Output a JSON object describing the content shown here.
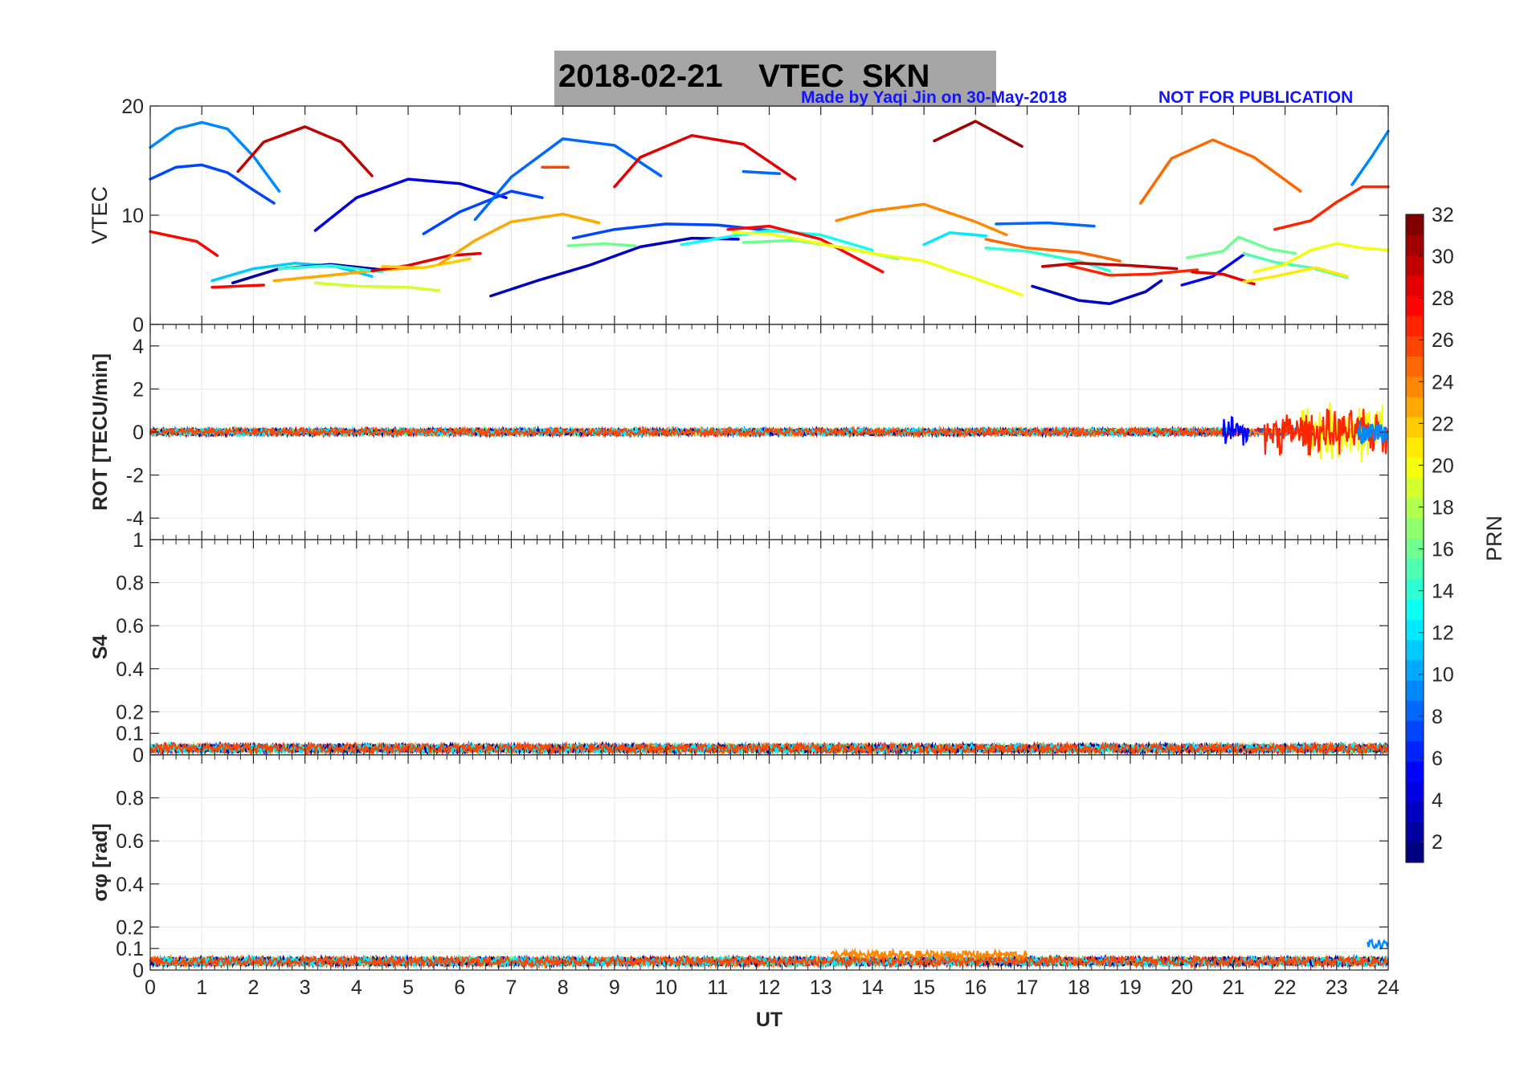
{
  "header": {
    "title": "2018-02-21    VTEC  SKN",
    "credit": "Made by Yaqi Jin on 30-May-2018",
    "notice": "NOT FOR PUBLICATION"
  },
  "chart_data": [
    {
      "type": "line",
      "panel": "vtec",
      "ylabel": "VTEC",
      "xlim": [
        0,
        24
      ],
      "ylim": [
        0,
        20
      ],
      "yticks": [
        0,
        10,
        20
      ],
      "grid": true,
      "series": [
        {
          "prn": 9,
          "x": [
            0,
            0.5,
            1,
            1.5,
            2,
            2.5
          ],
          "y": [
            16.2,
            17.9,
            18.5,
            17.9,
            15.4,
            12.2
          ]
        },
        {
          "prn": 7,
          "x": [
            0,
            0.5,
            1,
            1.5,
            2,
            2.4
          ],
          "y": [
            13.3,
            14.4,
            14.6,
            13.9,
            12.3,
            11.1
          ]
        },
        {
          "prn": 30,
          "x": [
            1.7,
            2.2,
            3,
            3.7,
            4.3
          ],
          "y": [
            14.0,
            16.7,
            18.1,
            16.7,
            13.6
          ]
        },
        {
          "prn": 4,
          "x": [
            3.2,
            4,
            5,
            6,
            6.9
          ],
          "y": [
            8.6,
            11.6,
            13.3,
            12.9,
            11.6
          ]
        },
        {
          "prn": 7,
          "x": [
            5.3,
            6,
            7,
            7.6
          ],
          "y": [
            8.3,
            10.3,
            12.2,
            11.6
          ]
        },
        {
          "prn": 8,
          "x": [
            6.3,
            7,
            8,
            9,
            9.9
          ],
          "y": [
            9.6,
            13.5,
            17.0,
            16.4,
            13.6
          ]
        },
        {
          "prn": 26,
          "x": [
            7.6,
            8.1
          ],
          "y": [
            14.4,
            14.4
          ]
        },
        {
          "prn": 29,
          "x": [
            9,
            9.5,
            10.5,
            11.5,
            12.5
          ],
          "y": [
            12.6,
            15.3,
            17.3,
            16.5,
            13.3
          ]
        },
        {
          "prn": 8,
          "x": [
            11.5,
            12.2
          ],
          "y": [
            14.0,
            13.8
          ]
        },
        {
          "prn": 31,
          "x": [
            15.2,
            16,
            16.9
          ],
          "y": [
            16.8,
            18.6,
            16.3
          ]
        },
        {
          "prn": 25,
          "x": [
            19.2,
            19.8,
            20.6,
            21.4,
            22.3
          ],
          "y": [
            11.1,
            15.2,
            16.9,
            15.3,
            12.2
          ]
        },
        {
          "prn": 28,
          "x": [
            0,
            0.5,
            0.9,
            1.3
          ],
          "y": [
            8.5,
            8.0,
            7.6,
            6.3
          ]
        },
        {
          "prn": 28,
          "x": [
            1.2,
            2.2
          ],
          "y": [
            3.4,
            3.6
          ]
        },
        {
          "prn": 11,
          "x": [
            1.2,
            2,
            2.8,
            3.6,
            4.3
          ],
          "y": [
            4.0,
            5.1,
            5.6,
            5.3,
            4.4
          ]
        },
        {
          "prn": 2,
          "x": [
            1.6,
            2.5,
            3.5,
            4.5
          ],
          "y": [
            3.8,
            5.1,
            5.5,
            5.0
          ]
        },
        {
          "prn": 23,
          "x": [
            2.4,
            3.5,
            4.5,
            5.2
          ],
          "y": [
            4.0,
            4.5,
            5.0,
            5.2
          ]
        },
        {
          "prn": 19,
          "x": [
            3.2,
            4,
            5,
            5.6
          ],
          "y": [
            3.8,
            3.5,
            3.4,
            3.1
          ]
        },
        {
          "prn": 14,
          "x": [
            2.5,
            3.5,
            4.5
          ],
          "y": [
            5.1,
            5.4,
            4.8
          ]
        },
        {
          "prn": 29,
          "x": [
            4.3,
            5,
            5.8,
            6.4
          ],
          "y": [
            4.9,
            5.4,
            6.3,
            6.5
          ]
        },
        {
          "prn": 22,
          "x": [
            4.5,
            5.3,
            6.2
          ],
          "y": [
            5.3,
            5.2,
            6.0
          ]
        },
        {
          "prn": 23,
          "x": [
            5.6,
            6.3,
            7,
            8,
            8.7
          ],
          "y": [
            5.5,
            7.7,
            9.4,
            10.1,
            9.3
          ]
        },
        {
          "prn": 3,
          "x": [
            6.6,
            7.5,
            8.5,
            9.5,
            10.5,
            11.4
          ],
          "y": [
            2.6,
            4.0,
            5.4,
            7.1,
            7.9,
            7.8
          ]
        },
        {
          "prn": 7,
          "x": [
            8.2,
            9,
            10,
            11,
            12
          ],
          "y": [
            7.9,
            8.7,
            9.2,
            9.1,
            8.6
          ]
        },
        {
          "prn": 16,
          "x": [
            8.1,
            8.8,
            9.4
          ],
          "y": [
            7.2,
            7.4,
            7.2
          ]
        },
        {
          "prn": 13,
          "x": [
            10.3,
            11.3,
            12,
            13,
            14
          ],
          "y": [
            7.3,
            8.1,
            8.6,
            8.2,
            6.8
          ]
        },
        {
          "prn": 28,
          "x": [
            11.2,
            12,
            13,
            14.2
          ],
          "y": [
            8.7,
            9.0,
            7.8,
            4.8
          ]
        },
        {
          "prn": 16,
          "x": [
            11.5,
            12.5,
            13.5,
            14.5
          ],
          "y": [
            7.5,
            7.7,
            7.0,
            6.0
          ]
        },
        {
          "prn": 20,
          "x": [
            11.3,
            12,
            13,
            14,
            15,
            16,
            16.9
          ],
          "y": [
            8.4,
            8.3,
            7.4,
            6.5,
            5.8,
            4.2,
            2.7
          ]
        },
        {
          "prn": 24,
          "x": [
            13.3,
            14,
            15,
            16,
            16.6
          ],
          "y": [
            9.5,
            10.4,
            11.0,
            9.4,
            8.2
          ]
        },
        {
          "prn": 12,
          "x": [
            15,
            15.5,
            16.2
          ],
          "y": [
            7.3,
            8.4,
            8.1
          ]
        },
        {
          "prn": 8,
          "x": [
            16.4,
            17.4,
            18.3
          ],
          "y": [
            9.2,
            9.3,
            9.0
          ]
        },
        {
          "prn": 25,
          "x": [
            16.2,
            17,
            18,
            18.8
          ],
          "y": [
            7.8,
            7.0,
            6.6,
            5.8
          ]
        },
        {
          "prn": 14,
          "x": [
            16.2,
            17,
            18,
            18.6
          ],
          "y": [
            7.0,
            6.7,
            5.8,
            4.9
          ]
        },
        {
          "prn": 3,
          "x": [
            17.1,
            18,
            18.6,
            19.3,
            19.6
          ],
          "y": [
            3.5,
            2.2,
            1.9,
            3.0,
            4.0
          ]
        },
        {
          "prn": 30,
          "x": [
            17.3,
            18,
            19,
            19.9
          ],
          "y": [
            5.3,
            5.6,
            5.4,
            5.1
          ]
        },
        {
          "prn": 27,
          "x": [
            17.8,
            18.6,
            19.4,
            20.3
          ],
          "y": [
            5.4,
            4.5,
            4.6,
            5.0
          ]
        },
        {
          "prn": 5,
          "x": [
            20,
            20.6,
            21.2
          ],
          "y": [
            3.6,
            4.4,
            6.4
          ]
        },
        {
          "prn": 29,
          "x": [
            20.2,
            20.8,
            21.4
          ],
          "y": [
            4.8,
            4.6,
            3.7
          ]
        },
        {
          "prn": 16,
          "x": [
            20.1,
            20.8,
            21.1,
            21.7,
            22.2
          ],
          "y": [
            6.1,
            6.7,
            8.0,
            6.9,
            6.5
          ]
        },
        {
          "prn": 15,
          "x": [
            21.2,
            21.8,
            22.5,
            23.2
          ],
          "y": [
            6.5,
            5.7,
            5.2,
            4.3
          ]
        },
        {
          "prn": 20,
          "x": [
            21.4,
            22,
            22.5,
            23,
            23.5,
            24
          ],
          "y": [
            4.8,
            5.5,
            6.8,
            7.4,
            7.0,
            6.8
          ]
        },
        {
          "prn": 21,
          "x": [
            21.2,
            21.8,
            22.6,
            23.2
          ],
          "y": [
            3.9,
            4.4,
            5.2,
            4.4
          ]
        },
        {
          "prn": 27,
          "x": [
            21.8,
            22.5,
            23,
            23.5,
            24
          ],
          "y": [
            8.7,
            9.5,
            11.2,
            12.6,
            12.6
          ]
        },
        {
          "prn": 9,
          "x": [
            23.3,
            23.7,
            24
          ],
          "y": [
            12.8,
            15.5,
            17.7
          ]
        }
      ]
    },
    {
      "type": "line",
      "panel": "rot",
      "ylabel": "ROT [TECU/min]",
      "xlim": [
        0,
        24
      ],
      "ylim": [
        -5,
        5
      ],
      "yticks": [
        -4,
        -2,
        0,
        2,
        4
      ],
      "grid": true,
      "band": {
        "x_range": [
          0,
          24
        ],
        "amplitude": 0.15,
        "quiet_until": 21.0
      },
      "disturbed": [
        {
          "prn": 5,
          "x_range": [
            20.8,
            21.3
          ],
          "amplitude": 1.0
        },
        {
          "prn": 20,
          "x_range": [
            22.3,
            23.9
          ],
          "amplitude": 1.6
        },
        {
          "prn": 27,
          "x_range": [
            21.6,
            24
          ],
          "amplitude": 1.2
        },
        {
          "prn": 9,
          "x_range": [
            23.4,
            24
          ],
          "amplitude": 0.7
        }
      ]
    },
    {
      "type": "line",
      "panel": "s4",
      "ylabel": "S4",
      "xlim": [
        0,
        24
      ],
      "ylim": [
        0,
        1
      ],
      "yticks": [
        0,
        0.1,
        0.2,
        0.4,
        0.6,
        0.8,
        1
      ],
      "grid": true,
      "band": {
        "x_range": [
          0,
          24
        ],
        "level": 0.03,
        "amplitude": 0.02
      }
    },
    {
      "type": "line",
      "panel": "sigma_phi",
      "ylabel": "σφ [rad]",
      "xlabel": "UT",
      "xlim": [
        0,
        24
      ],
      "xticks": [
        0,
        1,
        2,
        3,
        4,
        5,
        6,
        7,
        8,
        9,
        10,
        11,
        12,
        13,
        14,
        15,
        16,
        17,
        18,
        19,
        20,
        21,
        22,
        23,
        24
      ],
      "ylim": [
        0,
        1
      ],
      "yticks": [
        0,
        0.1,
        0.2,
        0.4,
        0.6,
        0.8
      ],
      "grid": true,
      "band": {
        "x_range": [
          0,
          24
        ],
        "level": 0.04,
        "amplitude": 0.02
      },
      "bumps": [
        {
          "prn": 24,
          "x_range": [
            13.2,
            17
          ],
          "level": 0.07
        },
        {
          "prn": 9,
          "x_range": [
            23.6,
            24
          ],
          "level": 0.12
        }
      ]
    }
  ],
  "colorbar": {
    "label": "PRN",
    "min": 1,
    "max": 32,
    "ticks": [
      2,
      4,
      6,
      8,
      10,
      12,
      14,
      16,
      18,
      20,
      22,
      24,
      26,
      28,
      30,
      32
    ],
    "colormap": "jet"
  }
}
